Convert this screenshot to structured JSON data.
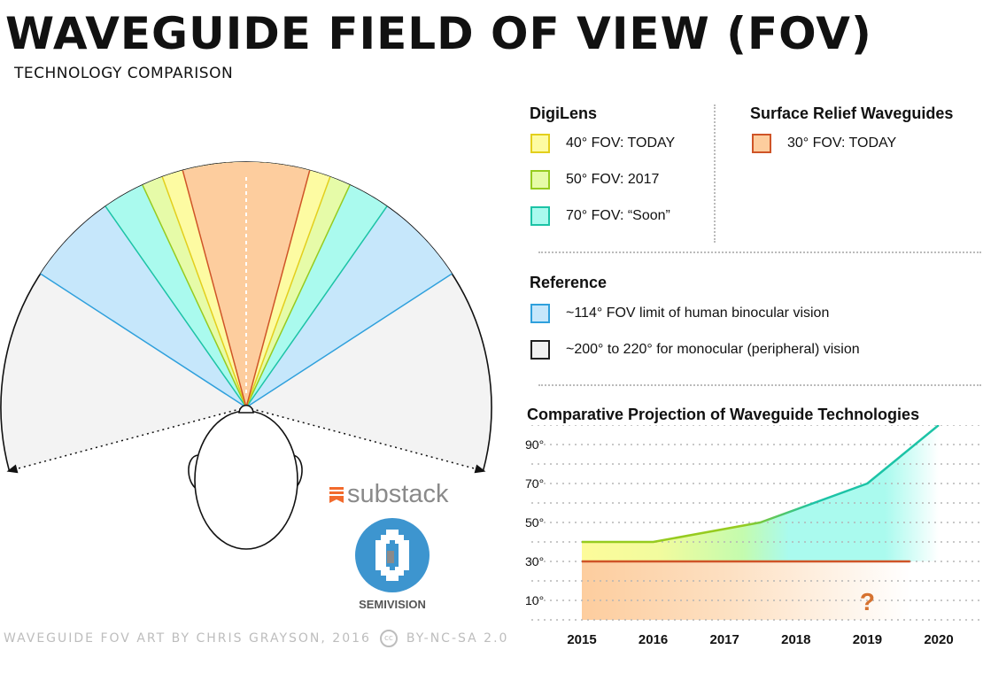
{
  "header": {
    "title": "WAVEGUIDE FIELD OF VIEW (FOV)",
    "subtitle": "TECHNOLOGY COMPARISON"
  },
  "legend": {
    "digilens": {
      "heading": "DigiLens",
      "items": [
        {
          "label": "40° FOV: TODAY",
          "fill": "#fdfba2",
          "stroke": "#e3cf1c"
        },
        {
          "label": "50° FOV: 2017",
          "fill": "#e6fba8",
          "stroke": "#96cb1f"
        },
        {
          "label": "70° FOV: “Soon”",
          "fill": "#aafaee",
          "stroke": "#1cc3a6"
        }
      ]
    },
    "surface_relief": {
      "heading": "Surface Relief Waveguides",
      "items": [
        {
          "label": "30° FOV: TODAY",
          "fill": "#fdcd9e",
          "stroke": "#cf5427"
        }
      ]
    },
    "reference": {
      "heading": "Reference",
      "items": [
        {
          "label": "~114° FOV limit of human binocular vision",
          "fill": "#c6e7fb",
          "stroke": "#2fa0dc"
        },
        {
          "label": "~200° to 220° for monocular (peripheral) vision",
          "fill": "#f3f3f3",
          "stroke": "#222222"
        }
      ]
    }
  },
  "chart_data": {
    "type": "area",
    "title": "Comparative Projection of Waveguide Technologies",
    "x": [
      2015,
      2016,
      2017,
      2018,
      2019,
      2020
    ],
    "xlabel": "",
    "ylabel": "",
    "ylim": [
      0,
      100
    ],
    "yticks": [
      10,
      30,
      50,
      70,
      90
    ],
    "ytick_labels": [
      "10°",
      "30°",
      "50°",
      "70°",
      "90°"
    ],
    "grid": true,
    "series": [
      {
        "name": "Surface Relief Waveguides",
        "x": [
          2015,
          2020
        ],
        "values": [
          30,
          30
        ],
        "color": "#cf5427",
        "fill": "#fdcd9e"
      },
      {
        "name": "DigiLens",
        "x": [
          2015,
          2016,
          2017.5,
          2019,
          2020
        ],
        "values": [
          40,
          40,
          50,
          70,
          100
        ],
        "color": "#1cc3a6",
        "fill": "#aafaee"
      }
    ],
    "annotations": [
      {
        "text": "?",
        "x": 2019,
        "y": 5
      }
    ]
  },
  "fov_diagram": {
    "sectors": [
      {
        "name": "monocular-peripheral",
        "deg": 210,
        "fill": "#f3f3f3",
        "stroke": "#111111"
      },
      {
        "name": "binocular-limit",
        "deg": 114,
        "fill": "#c6e7fb",
        "stroke": "#2fa0dc"
      },
      {
        "name": "digilens-70",
        "deg": 70,
        "fill": "#aafaee",
        "stroke": "#1cc3a6"
      },
      {
        "name": "digilens-50",
        "deg": 50,
        "fill": "#e6fba8",
        "stroke": "#96cb1f"
      },
      {
        "name": "digilens-40",
        "deg": 40,
        "fill": "#fdfba2",
        "stroke": "#e3cf1c"
      },
      {
        "name": "surface-relief-30",
        "deg": 30,
        "fill": "#fdcd9e",
        "stroke": "#cf5427"
      }
    ]
  },
  "logos": {
    "substack": "substack",
    "semivision": "SEMIVISION"
  },
  "credit": {
    "text": "WAVEGUIDE FOV ART BY CHRIS GRAYSON, 2016",
    "cc_mark": "cc",
    "license": "BY-NC-SA 2.0"
  }
}
